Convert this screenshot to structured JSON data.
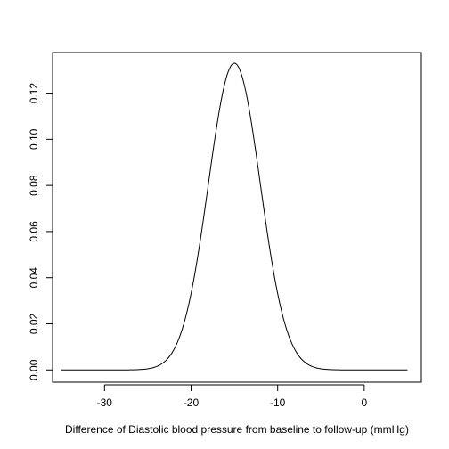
{
  "chart_data": {
    "type": "line",
    "title": "",
    "xlabel": "Difference of Diastolic blood pressure from baseline to follow-up (mmHg)",
    "ylabel": "",
    "xlim": [
      -36,
      6.6
    ],
    "ylim": [
      -0.0053,
      0.1376
    ],
    "x_ticks": [
      -30,
      -20,
      -10,
      0
    ],
    "x_tick_labels": [
      "-30",
      "-20",
      "-10",
      "0"
    ],
    "y_ticks": [
      0,
      0.02,
      0.04,
      0.06,
      0.08,
      0.1,
      0.12
    ],
    "y_tick_labels": [
      "0.00",
      "0.02",
      "0.04",
      "0.06",
      "0.08",
      "0.10",
      "0.12"
    ],
    "grid": false,
    "legend": "none",
    "series": [
      {
        "curve": "normal density",
        "mean": -15,
        "sd": 3,
        "x_range": [
          -35,
          5
        ],
        "peak": 0.133,
        "color": "#000000"
      }
    ]
  }
}
